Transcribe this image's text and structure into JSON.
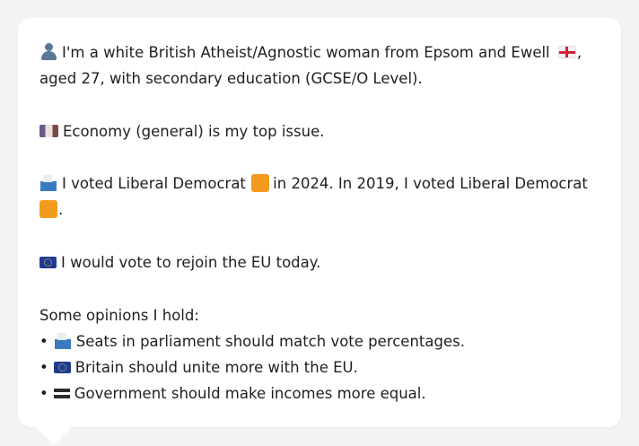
{
  "profile": {
    "intro_line1": "I'm a white British Atheist/Agnostic woman from Epsom and Ewell",
    "intro_line1_end": ",",
    "intro_line2": "aged 27, with secondary education (GCSE/O Level).",
    "top_issue": "Economy (general) is my top issue.",
    "vote_line1_a": "I voted Liberal Democrat",
    "vote_line1_b": "in 2024. In 2019, I voted Liberal Democrat",
    "vote_line2_end": ".",
    "eu_stance": "I would vote to rejoin the EU today.",
    "opinions_heading": "Some opinions I hold:",
    "bullet_char": "•",
    "opinions": [
      {
        "icon": "ballot-box-icon",
        "text": "Seats in parliament should match vote percentages."
      },
      {
        "icon": "eu-flag-icon",
        "text": "Britain should unite more with the EU."
      },
      {
        "icon": "equals-icon",
        "text": "Government should make incomes more equal."
      }
    ]
  },
  "colors": {
    "page_background": "#f2f3f5",
    "card_background": "#ffffff",
    "text": "#1f1f1f",
    "lib_dem_orange": "#f39b1f"
  }
}
